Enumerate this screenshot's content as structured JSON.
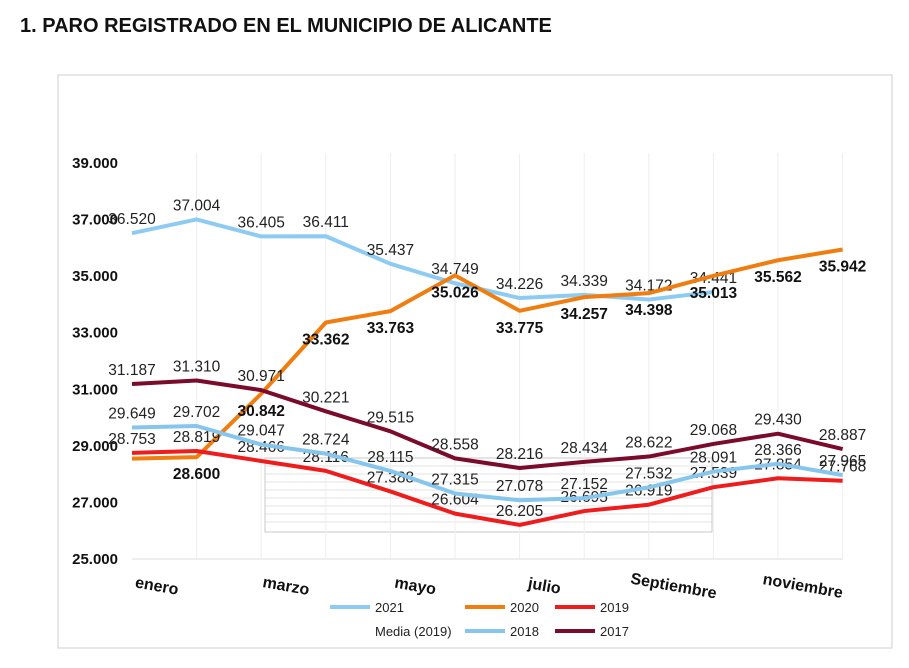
{
  "chart_data": {
    "type": "line",
    "title": "1. PARO REGISTRADO EN EL MUNICIPIO DE ALICANTE",
    "categories": [
      "enero",
      null,
      "marzo",
      null,
      "mayo",
      null,
      "julio",
      null,
      "Septiembre",
      null,
      "noviembre",
      null
    ],
    "ylim": [
      25000,
      39000
    ],
    "yticks": [
      {
        "value": 25000,
        "label": "25.000"
      },
      {
        "value": 27000,
        "label": "27.000"
      },
      {
        "value": 29000,
        "label": "29.000"
      },
      {
        "value": 31000,
        "label": "31.000"
      },
      {
        "value": 33000,
        "label": "33.000"
      },
      {
        "value": 35000,
        "label": "35.000"
      },
      {
        "value": 37000,
        "label": "37.000"
      },
      {
        "value": 39000,
        "label": "39.000"
      }
    ],
    "series": [
      {
        "name": "2021",
        "color": "#8dcbf2",
        "values": [
          36520,
          37004,
          36405,
          36411,
          35437,
          34749,
          34226,
          34339,
          34172,
          34441,
          null,
          null
        ],
        "value_labels": [
          "36.520",
          "37.004",
          "36.405",
          "36.411",
          "35.437",
          "34.749",
          "34.226",
          "34.339",
          "34.172",
          "34.441",
          null,
          null
        ]
      },
      {
        "name": "2020",
        "color": "#f07d10",
        "bold_labels": true,
        "values": [
          28550,
          28600,
          30842,
          33362,
          33763,
          35026,
          33775,
          34257,
          34398,
          35013,
          35562,
          35942
        ],
        "value_labels": [
          null,
          "28.600",
          "30.842",
          "33.362",
          "33.763",
          "35.026",
          "33.775",
          "34.257",
          "34.398",
          "35.013",
          "35.562",
          "35.942"
        ]
      },
      {
        "name": "2019",
        "color": "#ee1c1c",
        "values": [
          28753,
          28819,
          28466,
          28116,
          27388,
          26604,
          26205,
          26695,
          26919,
          27539,
          27854,
          27768
        ],
        "value_labels": [
          "28.753",
          "28.819",
          "28.466",
          "28.116",
          "27.388",
          "26.604",
          "26.205",
          "26.695",
          "26.919",
          "27.539",
          "27.854",
          "27.768"
        ]
      },
      {
        "name": "Media (2019)",
        "color": "#b0b0b0"
      },
      {
        "name": "2018",
        "color": "#86c5ec",
        "values": [
          29649,
          29702,
          29047,
          28724,
          28115,
          27315,
          27078,
          27152,
          27532,
          28091,
          28366,
          27965
        ],
        "value_labels": [
          "29.649",
          "29.702",
          "29.047",
          "28.724",
          "28.115",
          "27.315",
          "27.078",
          "27.152",
          "27.532",
          "28.091",
          "28.366",
          "27.965"
        ]
      },
      {
        "name": "2017",
        "color": "#7b0b2a",
        "values": [
          31187,
          31310,
          30971,
          30221,
          29515,
          28558,
          28216,
          28434,
          28622,
          29068,
          29430,
          28887
        ],
        "value_labels": [
          "31.187",
          "31.310",
          "30.971",
          "30.221",
          "29.515",
          "28.558",
          "28.216",
          "28.434",
          "28.622",
          "29.068",
          "29.430",
          "28.887"
        ]
      }
    ]
  }
}
